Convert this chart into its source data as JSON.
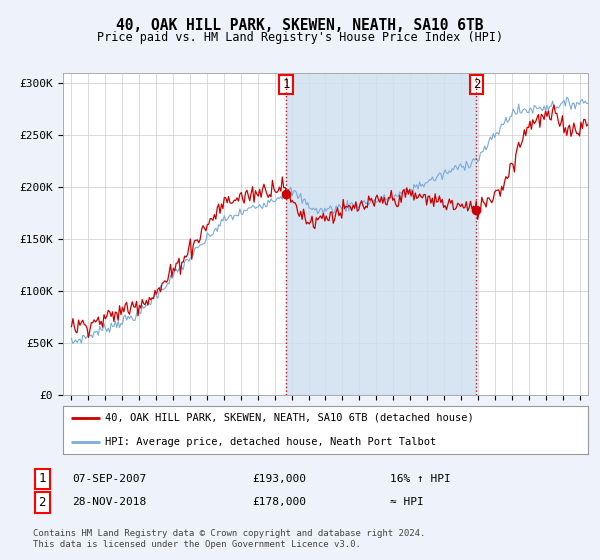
{
  "title": "40, OAK HILL PARK, SKEWEN, NEATH, SA10 6TB",
  "subtitle": "Price paid vs. HM Land Registry's House Price Index (HPI)",
  "ylabel_ticks": [
    "£0",
    "£50K",
    "£100K",
    "£150K",
    "£200K",
    "£250K",
    "£300K"
  ],
  "ytick_values": [
    0,
    50000,
    100000,
    150000,
    200000,
    250000,
    300000
  ],
  "ylim": [
    0,
    310000
  ],
  "xlim_start": 1994.5,
  "xlim_end": 2025.5,
  "marker1_date": 2007.68,
  "marker1_y": 193000,
  "marker2_date": 2018.91,
  "marker2_y": 178000,
  "legend_line1": "40, OAK HILL PARK, SKEWEN, NEATH, SA10 6TB (detached house)",
  "legend_line2": "HPI: Average price, detached house, Neath Port Talbot",
  "footer": "Contains HM Land Registry data © Crown copyright and database right 2024.\nThis data is licensed under the Open Government Licence v3.0.",
  "bg_color": "#eef2fb",
  "plot_bg": "#ffffff",
  "shade_color": "#d0e0f0",
  "red_color": "#cc0000",
  "blue_color": "#7aabdb"
}
